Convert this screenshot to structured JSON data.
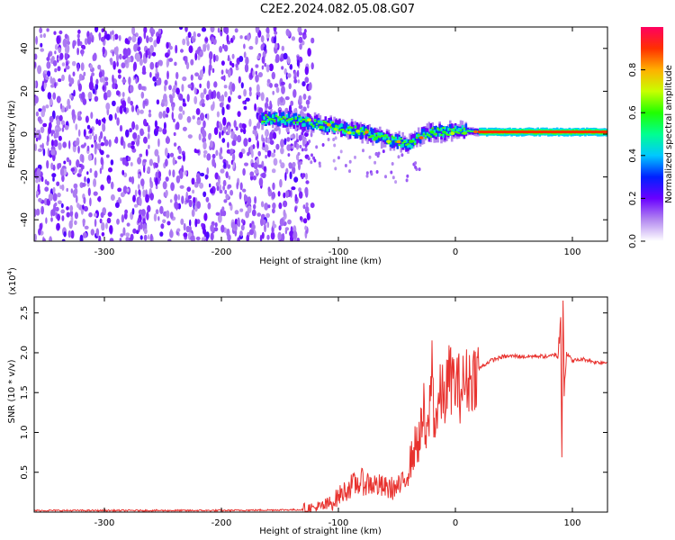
{
  "title": "C2E2.2024.082.05.08.G07",
  "chart_data": [
    {
      "type": "heatmap",
      "title": "C2E2.2024.082.05.08.G07",
      "xlabel": "Height of straight line (km)",
      "ylabel": "Frequency (Hz)",
      "xlim": [
        -360,
        130
      ],
      "ylim": [
        -50,
        50
      ],
      "xticks": [
        -300,
        -200,
        -100,
        0,
        100
      ],
      "xtick_labels": [
        "-300",
        "-200",
        "-100",
        "0",
        "100"
      ],
      "yticks": [
        -40,
        -20,
        0,
        20,
        40
      ],
      "ytick_labels": [
        "-40",
        "-20",
        "0",
        "20",
        "40"
      ],
      "noise_region_x": [
        -360,
        -130
      ],
      "signal_track": {
        "x": [
          -165,
          -140,
          -120,
          -100,
          -80,
          -60,
          -40,
          -30,
          -20,
          -10,
          0,
          20,
          60,
          90,
          130
        ],
        "frequency": [
          7,
          7,
          5,
          3,
          1,
          -2,
          -5,
          -1,
          1,
          1,
          2,
          1,
          1,
          1,
          1
        ]
      },
      "colorbar": {
        "label": "Normalized spectral amplitude",
        "range": [
          0,
          1
        ],
        "ticks": [
          0.0,
          0.2,
          0.4,
          0.6,
          0.8
        ],
        "tick_labels": [
          "0.0",
          "0.2",
          "0.4",
          "0.6",
          "0.8"
        ]
      }
    },
    {
      "type": "line",
      "xlabel": "Height of straight line (km)",
      "ylabel": "SNR (10 * v/v)",
      "scale_label": "(x10",
      "scale_exponent": "4",
      "scale_close": ")",
      "xlim": [
        -360,
        130
      ],
      "ylim": [
        0,
        2.7
      ],
      "xticks": [
        -300,
        -200,
        -100,
        0,
        100
      ],
      "xtick_labels": [
        "-300",
        "-200",
        "-100",
        "0",
        "100"
      ],
      "yticks": [
        0.5,
        1.0,
        1.5,
        2.0,
        2.5
      ],
      "ytick_labels": [
        "0.5",
        "1.0",
        "1.5",
        "2.0",
        "2.5"
      ],
      "line_color": "#e8322e",
      "series": [
        {
          "name": "SNR (x10^4)",
          "x": [
            -360,
            -200,
            -130,
            -115,
            -105,
            -100,
            -90,
            -80,
            -70,
            -60,
            -50,
            -45,
            -40,
            -35,
            -30,
            -27,
            -25,
            -22,
            -20,
            -18,
            -15,
            -12,
            -10,
            -5,
            0,
            5,
            10,
            15,
            20,
            25,
            30,
            40,
            50,
            60,
            70,
            80,
            85,
            88,
            90,
            91,
            92,
            93,
            95,
            100,
            110,
            120,
            130
          ],
          "y": [
            0.02,
            0.02,
            0.03,
            0.06,
            0.12,
            0.2,
            0.32,
            0.38,
            0.35,
            0.3,
            0.3,
            0.35,
            0.55,
            0.8,
            0.95,
            1.25,
            0.8,
            1.3,
            1.9,
            1.1,
            1.3,
            1.5,
            1.4,
            1.7,
            1.6,
            1.55,
            1.65,
            1.7,
            1.8,
            1.85,
            1.9,
            1.95,
            1.96,
            1.95,
            1.96,
            1.95,
            1.98,
            2.0,
            2.4,
            0.8,
            2.7,
            1.6,
            2.0,
            1.9,
            1.92,
            1.88,
            1.88
          ]
        }
      ]
    }
  ]
}
